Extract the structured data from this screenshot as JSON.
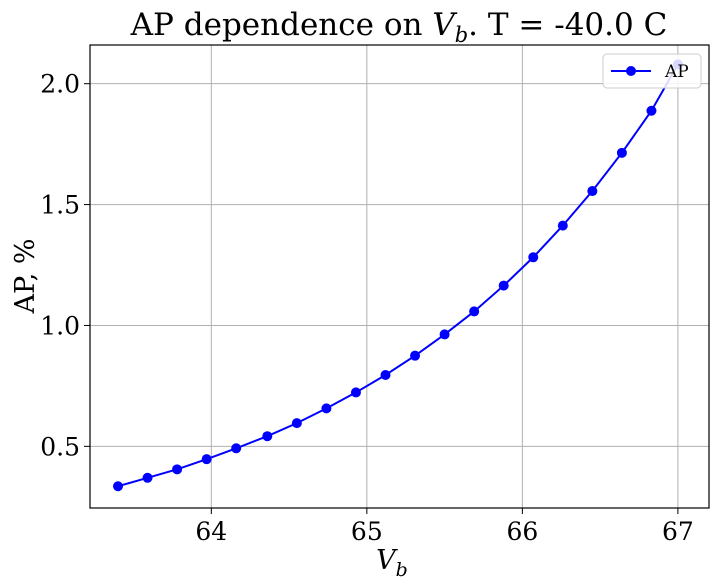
{
  "chart_data": {
    "type": "line",
    "title": {
      "prefix": "AP dependence on ",
      "var_main": "V",
      "var_sub": "b",
      "suffix": ". T = -40.0 C"
    },
    "xlabel": {
      "main": "V",
      "sub": "b"
    },
    "ylabel": "AP, %",
    "xlim": [
      63.22,
      67.2
    ],
    "ylim": [
      0.245,
      2.16
    ],
    "xticks": [
      {
        "value": 64,
        "label": "64"
      },
      {
        "value": 65,
        "label": "65"
      },
      {
        "value": 66,
        "label": "66"
      },
      {
        "value": 67,
        "label": "67"
      }
    ],
    "yticks": [
      {
        "value": 0.5,
        "label": "0.5"
      },
      {
        "value": 1.0,
        "label": "1.0"
      },
      {
        "value": 1.5,
        "label": "1.5"
      },
      {
        "value": 2.0,
        "label": "2.0"
      }
    ],
    "grid": true,
    "legend_position": "top-right",
    "series": [
      {
        "name": "AP",
        "color": "#0000ff",
        "marker": "circle",
        "x": [
          63.4,
          63.59,
          63.78,
          63.97,
          64.16,
          64.36,
          64.55,
          64.74,
          64.93,
          65.12,
          65.31,
          65.5,
          65.69,
          65.88,
          66.07,
          66.26,
          66.45,
          66.64,
          66.83,
          67.0
        ],
        "y": [
          0.335,
          0.37,
          0.405,
          0.447,
          0.492,
          0.542,
          0.596,
          0.657,
          0.723,
          0.795,
          0.875,
          0.963,
          1.058,
          1.165,
          1.282,
          1.413,
          1.556,
          1.714,
          1.888,
          2.08
        ]
      }
    ]
  }
}
